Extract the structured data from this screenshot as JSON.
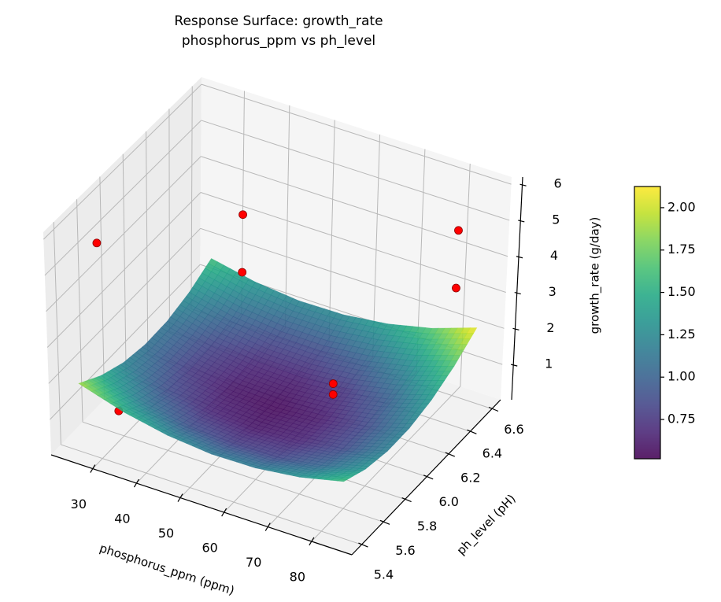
{
  "chart_data": {
    "type": "surface",
    "title": "Response Surface: growth_rate",
    "subtitle": "phosphorus_ppm vs ph_level",
    "xlabel": "phosphorus_ppm (ppm)",
    "ylabel": "ph_level (pH)",
    "zlabel": "growth_rate (g/day)",
    "xlim": [
      20.5,
      89.2
    ],
    "ylim": [
      5.31,
      6.68
    ],
    "zlim": [
      0.02,
      6.2
    ],
    "xticks": [
      30,
      40,
      50,
      60,
      70,
      80
    ],
    "yticks": [
      5.4,
      5.6,
      5.8,
      6.0,
      6.2,
      6.4,
      6.6
    ],
    "zticks": [
      1,
      2,
      3,
      4,
      5,
      6
    ],
    "ytick_labels": [
      "5.4",
      "5.6",
      "5.8",
      "6.0",
      "6.2",
      "6.4",
      "6.6"
    ],
    "grid": true,
    "colormap": "viridis",
    "surface": {
      "x": [
        25,
        35,
        45,
        55,
        65,
        75,
        85
      ],
      "y": [
        5.4,
        5.6,
        5.8,
        6.0,
        6.2,
        6.4,
        6.6
      ],
      "z": [
        [
          1.9,
          1.52,
          1.27,
          1.15,
          1.17,
          1.32,
          1.6
        ],
        [
          1.49,
          1.13,
          0.9,
          0.81,
          0.84,
          1.02,
          1.32
        ],
        [
          1.22,
          0.88,
          0.68,
          0.61,
          0.67,
          0.86,
          1.19
        ],
        [
          1.1,
          0.78,
          0.6,
          0.55,
          0.63,
          0.85,
          1.2
        ],
        [
          1.12,
          0.83,
          0.67,
          0.64,
          0.74,
          0.98,
          1.36
        ],
        [
          1.29,
          1.02,
          0.88,
          0.87,
          1.0,
          1.26,
          1.66
        ],
        [
          1.6,
          1.35,
          1.23,
          1.25,
          1.4,
          1.68,
          2.1
        ]
      ]
    },
    "points": [
      {
        "x": 30,
        "y": 5.4,
        "z": 6.0
      },
      {
        "x": 32,
        "y": 6.6,
        "z": 3.1
      },
      {
        "x": 32,
        "y": 6.6,
        "z": 1.5
      },
      {
        "x": 34,
        "y": 5.4,
        "z": 1.5
      },
      {
        "x": 80,
        "y": 5.5,
        "z": 3.8
      },
      {
        "x": 80,
        "y": 5.5,
        "z": 3.5
      },
      {
        "x": 80,
        "y": 6.6,
        "z": 4.6
      },
      {
        "x": 80,
        "y": 6.6,
        "z": 3.0
      }
    ],
    "point_color": "#ff0000",
    "point_edge": "#8b0000",
    "colorbar": {
      "range": [
        0.518,
        2.125
      ],
      "ticks": [
        0.75,
        1.0,
        1.25,
        1.5,
        1.75,
        2.0
      ],
      "tick_labels": [
        "0.75",
        "1.00",
        "1.25",
        "1.50",
        "1.75",
        "2.00"
      ]
    }
  }
}
